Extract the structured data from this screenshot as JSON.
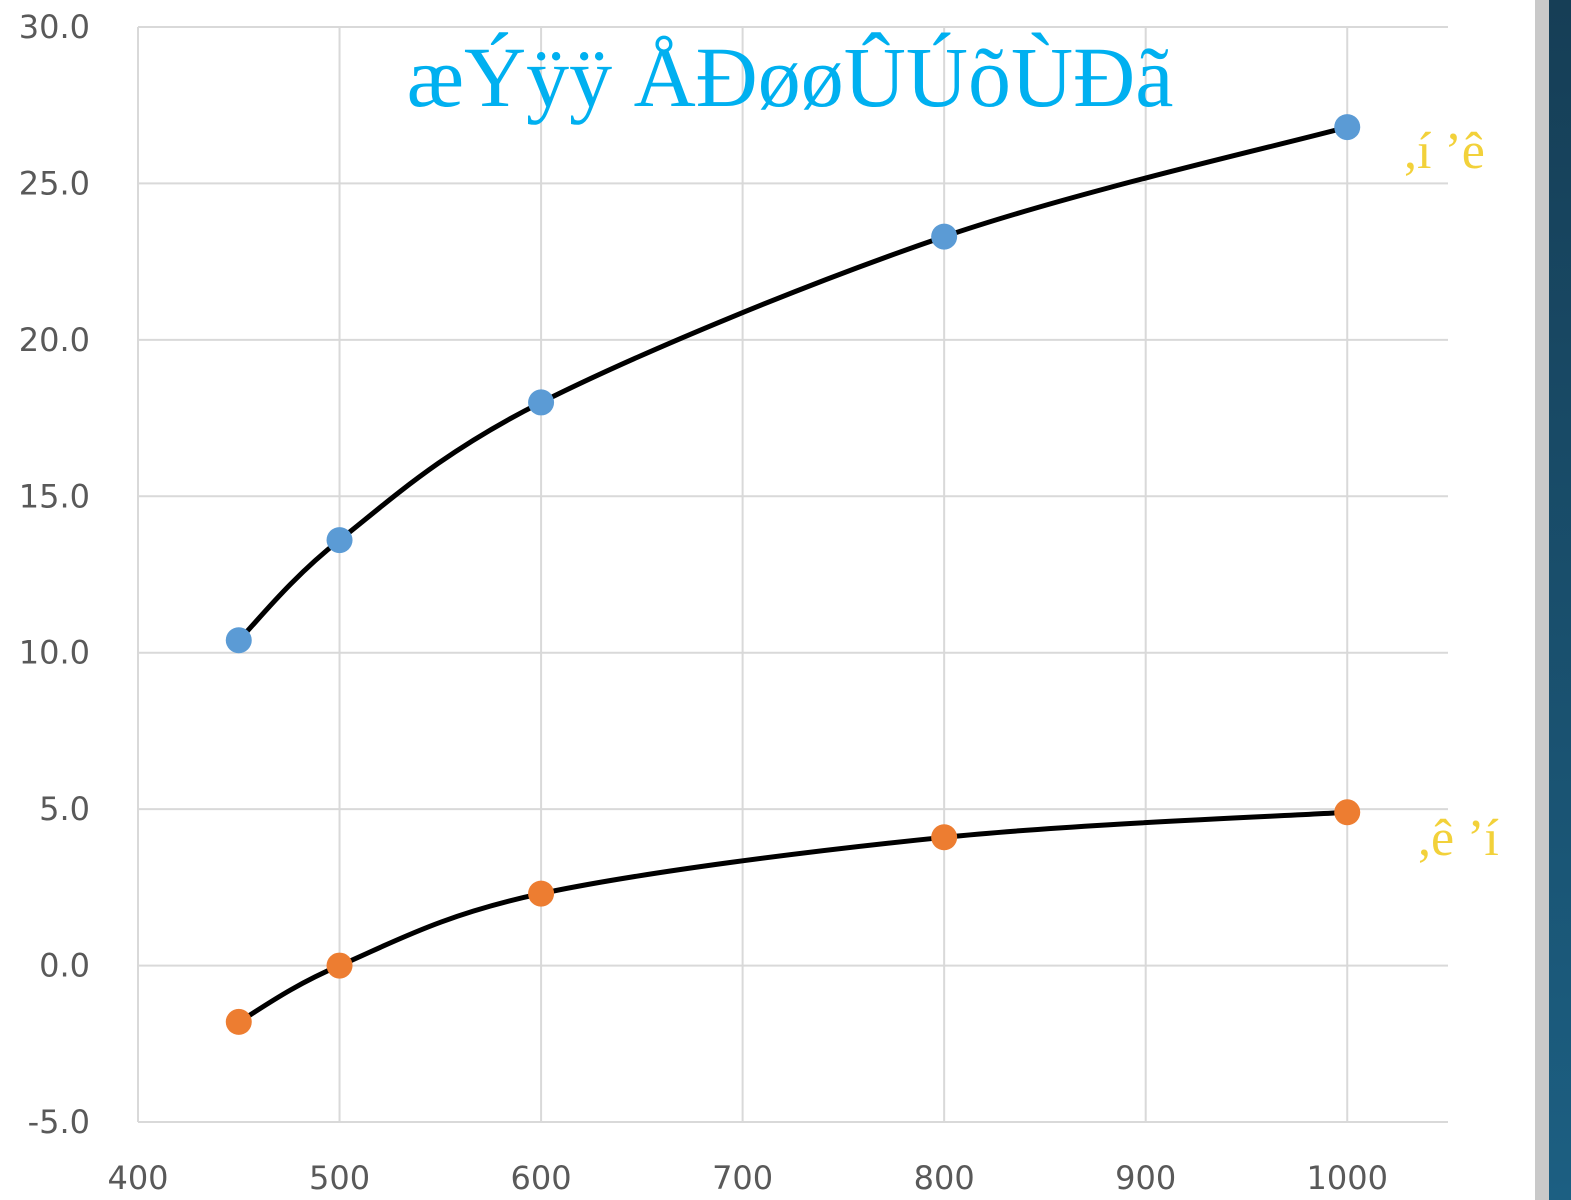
{
  "colors": {
    "background": "#ffffff",
    "gridline": "#d9d9d9",
    "tick_text": "#595959",
    "curve": "#000000",
    "title": "#00b0f0",
    "side_label": "#f2d13a",
    "side_panel_top": "#163e56",
    "side_panel_bottom": "#1c5f82",
    "side_panel_border": "#c9c9c9"
  },
  "chart_data": {
    "type": "scatter",
    "title": "æÝÿÿ ÅÐøøÛÚõÙÐã",
    "xlabel": "",
    "ylabel": "",
    "xlim": [
      400,
      1050
    ],
    "ylim": [
      -5,
      30
    ],
    "x_ticks": [
      "400",
      "500",
      "600",
      "700",
      "800",
      "900",
      "1000"
    ],
    "y_ticks": [
      "-5.0",
      "0.0",
      "5.0",
      "10.0",
      "15.0",
      "20.0",
      "25.0",
      "30.0"
    ],
    "grid": true,
    "legend": "none",
    "smooth_lines": true,
    "series": [
      {
        "label": ",í ’ê",
        "color": "#5b9bd5",
        "x": [
          450,
          500,
          600,
          800,
          1000
        ],
        "y": [
          10.4,
          13.6,
          18.0,
          23.3,
          26.8
        ]
      },
      {
        "label": ",ê ’í",
        "color": "#ed7d31",
        "x": [
          450,
          500,
          600,
          800,
          1000
        ],
        "y": [
          -1.8,
          0.0,
          2.3,
          4.1,
          4.9
        ]
      }
    ]
  }
}
